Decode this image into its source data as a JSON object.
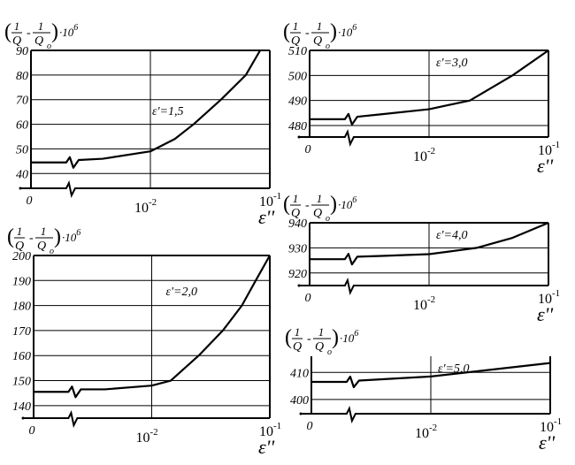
{
  "chart_data": [
    {
      "type": "line",
      "ylabel": {
        "open": "(",
        "num1": "1",
        "den1": "Q",
        "minus": "-",
        "num2": "1",
        "den2": "Q",
        "den2_sub": "o",
        "close": ")",
        "factor": "·10",
        "exp": "6"
      },
      "xlabel": "ε''",
      "x_scale": "log with axis break after 0",
      "x_ticks": [
        {
          "label": "0"
        },
        {
          "base": "10",
          "exp": "-2"
        },
        {
          "base": "10",
          "exp": "-1"
        }
      ],
      "xlim": [
        0.001,
        0.1
      ],
      "yticks": [
        40,
        50,
        60,
        70,
        80,
        90
      ],
      "ylim": [
        34,
        90
      ],
      "annotation": "ε'=1,5",
      "grid": true,
      "base_value": 44.5,
      "points": [
        [
          0.0025,
          45.5
        ],
        [
          0.004,
          46
        ],
        [
          0.01,
          49
        ],
        [
          0.016,
          54
        ],
        [
          0.023,
          60
        ],
        [
          0.039,
          70
        ],
        [
          0.063,
          80
        ],
        [
          0.083,
          90
        ]
      ]
    },
    {
      "type": "line",
      "ylabel": {
        "open": "(",
        "num1": "1",
        "den1": "Q",
        "minus": "-",
        "num2": "1",
        "den2": "Q",
        "den2_sub": "o",
        "close": ")",
        "factor": "·10",
        "exp": "6"
      },
      "xlabel": "ε''",
      "x_scale": "log with axis break after 0",
      "x_ticks": [
        {
          "label": "0"
        },
        {
          "base": "10",
          "exp": "-2"
        },
        {
          "base": "10",
          "exp": "-1"
        }
      ],
      "xlim": [
        0.001,
        0.1
      ],
      "yticks": [
        480,
        490,
        500,
        510
      ],
      "ylim": [
        475.4,
        510
      ],
      "annotation": "ε'=3,0",
      "grid": true,
      "base_value": 482.5,
      "points": [
        [
          0.0025,
          483.5
        ],
        [
          0.004,
          484.5
        ],
        [
          0.01,
          486.5
        ],
        [
          0.022,
          490
        ],
        [
          0.05,
          500
        ],
        [
          0.1,
          510
        ]
      ]
    },
    {
      "type": "line",
      "ylabel": {
        "open": "(",
        "num1": "1",
        "den1": "Q",
        "minus": "-",
        "num2": "1",
        "den2": "Q",
        "den2_sub": "o",
        "close": ")",
        "factor": "·10",
        "exp": "6"
      },
      "xlabel": "ε''",
      "x_scale": "log with axis break after 0",
      "x_ticks": [
        {
          "label": "0"
        },
        {
          "base": "10",
          "exp": "-2"
        },
        {
          "base": "10",
          "exp": "-1"
        }
      ],
      "xlim": [
        0.001,
        0.1
      ],
      "yticks": [
        140,
        150,
        160,
        170,
        180,
        190,
        200
      ],
      "ylim": [
        135,
        200
      ],
      "annotation": "ε'=2,0",
      "grid": true,
      "base_value": 145.5,
      "points": [
        [
          0.0025,
          146.5
        ],
        [
          0.004,
          146.5
        ],
        [
          0.01,
          148
        ],
        [
          0.0145,
          150
        ],
        [
          0.025,
          160
        ],
        [
          0.04,
          170
        ],
        [
          0.058,
          180
        ],
        [
          0.076,
          190
        ],
        [
          0.1,
          200
        ]
      ]
    },
    {
      "type": "line",
      "ylabel": {
        "open": "(",
        "num1": "1",
        "den1": "Q",
        "minus": "-",
        "num2": "1",
        "den2": "Q",
        "den2_sub": "o",
        "close": ")",
        "factor": "·10",
        "exp": "6"
      },
      "xlabel": "ε''",
      "x_scale": "log with axis break after 0",
      "x_ticks": [
        {
          "label": "0"
        },
        {
          "base": "10",
          "exp": "-2"
        },
        {
          "base": "10",
          "exp": "-1"
        }
      ],
      "xlim": [
        0.001,
        0.1
      ],
      "yticks": [
        920,
        930,
        940
      ],
      "ylim": [
        915,
        940
      ],
      "annotation": "ε'=4,0",
      "grid": true,
      "base_value": 925.5,
      "points": [
        [
          0.0025,
          926.5
        ],
        [
          0.004,
          926.8
        ],
        [
          0.01,
          927.5
        ],
        [
          0.025,
          930
        ],
        [
          0.05,
          934
        ],
        [
          0.1,
          940
        ]
      ]
    },
    {
      "type": "line",
      "ylabel": {
        "open": "(",
        "num1": "1",
        "den1": "Q",
        "minus": "-",
        "num2": "1",
        "den2": "Q",
        "den2_sub": "o",
        "close": ")",
        "factor": "·10",
        "exp": "6"
      },
      "xlabel": "ε''",
      "x_scale": "log with axis break after 0",
      "x_ticks": [
        {
          "label": "0"
        },
        {
          "base": "10",
          "exp": "-2"
        },
        {
          "base": "10",
          "exp": "-1"
        }
      ],
      "xlim": [
        0.001,
        0.1
      ],
      "yticks": [
        400,
        410
      ],
      "ylim": [
        394.7,
        416
      ],
      "annotation": "ε'=5,0",
      "grid": true,
      "base_value": 406.5,
      "points": [
        [
          0.0025,
          407
        ],
        [
          0.01,
          408.5
        ],
        [
          0.1,
          413.5
        ]
      ]
    }
  ]
}
